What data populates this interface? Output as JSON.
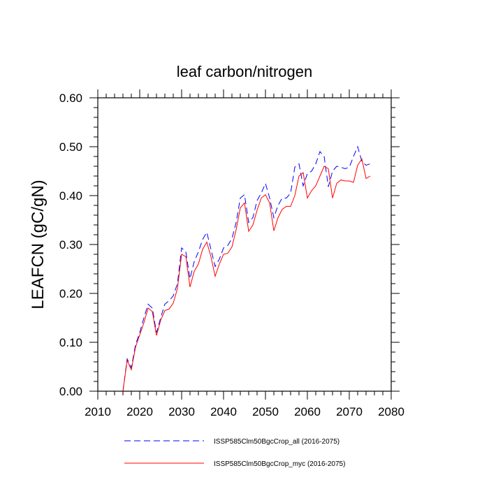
{
  "chart_data": {
    "type": "line",
    "title": "leaf carbon/nitrogen",
    "xlabel": "",
    "ylabel": "LEAFCN  (gC/gN)",
    "xlim": [
      2010,
      2080
    ],
    "ylim": [
      0.0,
      0.6
    ],
    "x_ticks": [
      "2010",
      "2020",
      "2030",
      "2040",
      "2050",
      "2060",
      "2070",
      "2080"
    ],
    "y_ticks": [
      "0.00",
      "0.10",
      "0.20",
      "0.30",
      "0.40",
      "0.50",
      "0.60"
    ],
    "grid": false,
    "legend_position": "bottom",
    "x": [
      2016,
      2017,
      2018,
      2019,
      2020,
      2021,
      2022,
      2023,
      2024,
      2025,
      2026,
      2027,
      2028,
      2029,
      2030,
      2031,
      2032,
      2033,
      2034,
      2035,
      2036,
      2037,
      2038,
      2039,
      2040,
      2041,
      2042,
      2043,
      2044,
      2045,
      2046,
      2047,
      2048,
      2049,
      2050,
      2051,
      2052,
      2053,
      2054,
      2055,
      2056,
      2057,
      2058,
      2059,
      2060,
      2061,
      2062,
      2063,
      2064,
      2065,
      2066,
      2067,
      2068,
      2069,
      2070,
      2071,
      2072,
      2073,
      2074,
      2075
    ],
    "series": [
      {
        "name": "ISSP585Clm50BgcCrop_all (2016-2075)",
        "color": "#0000ff",
        "dash": "dashed",
        "values": [
          0.0,
          0.066,
          0.048,
          0.095,
          0.12,
          0.15,
          0.178,
          0.17,
          0.12,
          0.15,
          0.178,
          0.185,
          0.195,
          0.22,
          0.293,
          0.285,
          0.23,
          0.265,
          0.285,
          0.31,
          0.325,
          0.29,
          0.255,
          0.27,
          0.293,
          0.298,
          0.312,
          0.345,
          0.395,
          0.402,
          0.345,
          0.355,
          0.39,
          0.405,
          0.425,
          0.395,
          0.355,
          0.38,
          0.395,
          0.395,
          0.405,
          0.458,
          0.465,
          0.42,
          0.445,
          0.45,
          0.465,
          0.49,
          0.48,
          0.418,
          0.45,
          0.46,
          0.458,
          0.455,
          0.458,
          0.48,
          0.5,
          0.47,
          0.462,
          0.465
        ]
      },
      {
        "name": "ISSP585Clm50BgcCrop_myc (2016-2075)",
        "color": "#ff0000",
        "dash": "solid",
        "values": [
          0.0,
          0.063,
          0.044,
          0.09,
          0.115,
          0.14,
          0.17,
          0.163,
          0.114,
          0.145,
          0.165,
          0.168,
          0.18,
          0.21,
          0.28,
          0.275,
          0.213,
          0.245,
          0.26,
          0.29,
          0.305,
          0.275,
          0.235,
          0.26,
          0.28,
          0.282,
          0.295,
          0.33,
          0.375,
          0.385,
          0.327,
          0.34,
          0.37,
          0.395,
          0.402,
          0.385,
          0.328,
          0.355,
          0.372,
          0.378,
          0.378,
          0.4,
          0.44,
          0.447,
          0.395,
          0.41,
          0.42,
          0.44,
          0.46,
          0.455,
          0.395,
          0.425,
          0.432,
          0.43,
          0.43,
          0.427,
          0.462,
          0.475,
          0.435,
          0.44
        ]
      }
    ]
  }
}
